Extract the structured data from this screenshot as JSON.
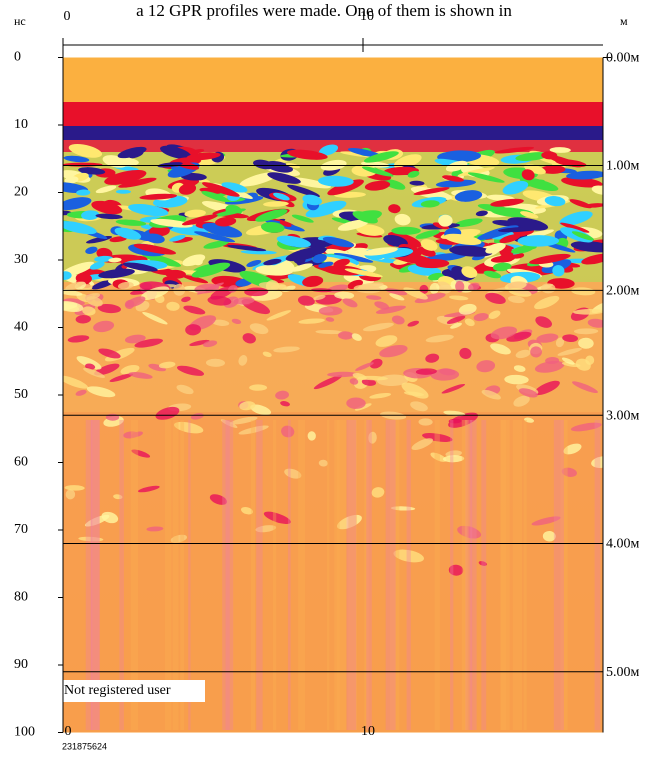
{
  "caption": "a 12 GPR profiles were made. One of them is shown in",
  "chart_data": {
    "type": "radargram",
    "ylabel": "нс",
    "xlabel": "м",
    "ylim": [
      0,
      100
    ],
    "yticks": [
      0,
      10,
      20,
      30,
      40,
      50,
      60,
      70,
      80,
      90,
      100
    ],
    "xlim": [
      0,
      18
    ],
    "xticks": [
      0,
      10
    ],
    "depth_marks": [
      {
        "value": 0,
        "label": "0.00м"
      },
      {
        "value": 16,
        "label": "1.00м"
      },
      {
        "value": 34.5,
        "label": "2.00м"
      },
      {
        "value": 53,
        "label": "3.00м"
      },
      {
        "value": 72,
        "label": "4.00м"
      },
      {
        "value": 91,
        "label": "5.00м"
      }
    ],
    "watermark": "Not registered user",
    "serial": "231875624"
  }
}
